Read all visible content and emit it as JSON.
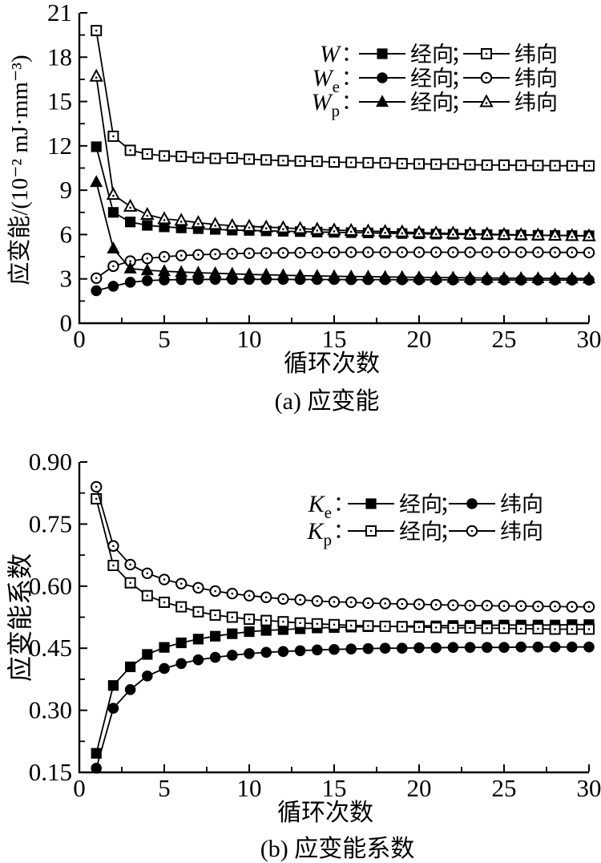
{
  "colors": {
    "foreground": "#000000",
    "background": "#ffffff"
  },
  "chart_data": [
    {
      "type": "line",
      "caption": "(a) 应变能",
      "xlabel": "循环次数",
      "ylabel": "应变能/(10⁻² mJ·mm⁻³)",
      "xlim": [
        0,
        30
      ],
      "ylim": [
        0,
        21
      ],
      "grid": false,
      "legend_position": "top-right-inside",
      "x_ticks": {
        "major": [
          0,
          5,
          10,
          15,
          20,
          25,
          30
        ],
        "labels": [
          "0",
          "5",
          "10",
          "15",
          "20",
          "25",
          "30"
        ],
        "minor_step": 2.5
      },
      "y_ticks": {
        "major": [
          0,
          3,
          6,
          9,
          12,
          15,
          18,
          21
        ],
        "labels": [
          "0",
          "3",
          "6",
          "9",
          "12",
          "15",
          "18",
          "21"
        ],
        "minor_step": 1.5
      },
      "x": [
        1,
        2,
        3,
        4,
        5,
        6,
        7,
        8,
        9,
        10,
        11,
        12,
        13,
        14,
        15,
        16,
        17,
        18,
        19,
        20,
        21,
        22,
        23,
        24,
        25,
        26,
        27,
        28,
        29,
        30
      ],
      "series": [
        {
          "name": "W 经向",
          "marker": "square",
          "fill": "filled",
          "values": [
            11.94,
            7.5,
            6.85,
            6.62,
            6.52,
            6.45,
            6.4,
            6.35,
            6.3,
            6.28,
            6.25,
            6.22,
            6.2,
            6.17,
            6.15,
            6.13,
            6.11,
            6.09,
            6.07,
            6.05,
            6.03,
            6.02,
            6.0,
            5.99,
            5.98,
            5.96,
            5.95,
            5.94,
            5.93,
            5.92
          ]
        },
        {
          "name": "W 纬向",
          "marker": "square",
          "fill": "open",
          "values": [
            19.8,
            12.65,
            11.7,
            11.45,
            11.32,
            11.28,
            11.2,
            11.15,
            11.18,
            11.1,
            11.05,
            11.0,
            10.97,
            10.95,
            10.9,
            10.88,
            10.86,
            10.85,
            10.8,
            10.78,
            10.76,
            10.78,
            10.72,
            10.7,
            10.7,
            10.68,
            10.67,
            10.66,
            10.65,
            10.65
          ]
        },
        {
          "name": "We 经向",
          "marker": "circle",
          "fill": "filled",
          "values": [
            2.2,
            2.5,
            2.77,
            2.88,
            2.93,
            2.95,
            2.96,
            2.97,
            2.97,
            2.97,
            2.97,
            2.97,
            2.96,
            2.96,
            2.96,
            2.95,
            2.95,
            2.95,
            2.94,
            2.94,
            2.94,
            2.93,
            2.93,
            2.93,
            2.93,
            2.92,
            2.92,
            2.92,
            2.92,
            2.92
          ]
        },
        {
          "name": "We 纬向",
          "marker": "circle",
          "fill": "open",
          "values": [
            3.05,
            3.86,
            4.2,
            4.38,
            4.5,
            4.58,
            4.63,
            4.67,
            4.7,
            4.73,
            4.75,
            4.76,
            4.77,
            4.78,
            4.79,
            4.8,
            4.8,
            4.8,
            4.8,
            4.8,
            4.8,
            4.8,
            4.8,
            4.8,
            4.8,
            4.8,
            4.8,
            4.79,
            4.79,
            4.78
          ]
        },
        {
          "name": "Wp 经向",
          "marker": "triangle",
          "fill": "filled",
          "values": [
            9.55,
            5.05,
            3.7,
            3.58,
            3.52,
            3.46,
            3.42,
            3.38,
            3.34,
            3.3,
            3.28,
            3.25,
            3.22,
            3.2,
            3.18,
            3.16,
            3.15,
            3.13,
            3.12,
            3.1,
            3.09,
            3.08,
            3.07,
            3.06,
            3.05,
            3.05,
            3.04,
            3.04,
            3.03,
            3.03
          ]
        },
        {
          "name": "Wp 纬向",
          "marker": "triangle",
          "fill": "open",
          "values": [
            16.7,
            8.7,
            7.9,
            7.35,
            7.06,
            6.95,
            6.8,
            6.68,
            6.6,
            6.55,
            6.5,
            6.45,
            6.4,
            6.35,
            6.3,
            6.27,
            6.23,
            6.2,
            6.17,
            6.13,
            6.1,
            6.08,
            6.05,
            6.03,
            6.0,
            5.98,
            5.96,
            5.94,
            5.92,
            5.9
          ]
        }
      ],
      "legend": {
        "colon": "：",
        "separator": "；",
        "rows": [
          {
            "label": "W",
            "sub": "",
            "entries": [
              {
                "marker": "square",
                "fill": "filled",
                "text": "经向"
              },
              {
                "marker": "square",
                "fill": "open",
                "text": "纬向"
              }
            ]
          },
          {
            "label": "W",
            "sub": "e",
            "entries": [
              {
                "marker": "circle",
                "fill": "filled",
                "text": "经向"
              },
              {
                "marker": "circle",
                "fill": "open",
                "text": "纬向"
              }
            ]
          },
          {
            "label": "W",
            "sub": "p",
            "entries": [
              {
                "marker": "triangle",
                "fill": "filled",
                "text": "经向"
              },
              {
                "marker": "triangle",
                "fill": "open",
                "text": "纬向"
              }
            ]
          }
        ]
      }
    },
    {
      "type": "line",
      "caption": "(b) 应变能系数",
      "xlabel": "循环次数",
      "ylabel": "应变能系数",
      "xlim": [
        0,
        30
      ],
      "ylim": [
        0.15,
        0.9
      ],
      "grid": false,
      "legend_position": "top-right-inside",
      "x_ticks": {
        "major": [
          0,
          5,
          10,
          15,
          20,
          25,
          30
        ],
        "labels": [
          "0",
          "5",
          "10",
          "15",
          "20",
          "25",
          "30"
        ],
        "minor_step": 2.5
      },
      "y_ticks": {
        "major": [
          0.15,
          0.3,
          0.45,
          0.6,
          0.75,
          0.9
        ],
        "labels": [
          "0.15",
          "0.30",
          "0.45",
          "0.60",
          "0.75",
          "0.90"
        ],
        "minor_step": 0.075
      },
      "x": [
        1,
        2,
        3,
        4,
        5,
        6,
        7,
        8,
        9,
        10,
        11,
        12,
        13,
        14,
        15,
        16,
        17,
        18,
        19,
        20,
        21,
        22,
        23,
        24,
        25,
        26,
        27,
        28,
        29,
        30
      ],
      "series": [
        {
          "name": "Ke 经向",
          "marker": "square",
          "fill": "filled",
          "values": [
            0.196,
            0.36,
            0.405,
            0.435,
            0.452,
            0.463,
            0.472,
            0.479,
            0.485,
            0.49,
            0.493,
            0.495,
            0.497,
            0.499,
            0.5,
            0.501,
            0.502,
            0.503,
            0.503,
            0.504,
            0.504,
            0.505,
            0.505,
            0.505,
            0.506,
            0.506,
            0.506,
            0.506,
            0.507,
            0.507
          ]
        },
        {
          "name": "Ke 纬向",
          "marker": "circle",
          "fill": "filled",
          "values": [
            0.16,
            0.305,
            0.35,
            0.383,
            0.401,
            0.413,
            0.422,
            0.428,
            0.433,
            0.437,
            0.44,
            0.442,
            0.444,
            0.446,
            0.447,
            0.448,
            0.449,
            0.45,
            0.45,
            0.451,
            0.451,
            0.452,
            0.452,
            0.452,
            0.452,
            0.453,
            0.453,
            0.453,
            0.453,
            0.453
          ]
        },
        {
          "name": "Kp 经向",
          "marker": "square",
          "fill": "open",
          "values": [
            0.811,
            0.65,
            0.608,
            0.577,
            0.561,
            0.55,
            0.538,
            0.53,
            0.525,
            0.52,
            0.517,
            0.514,
            0.511,
            0.509,
            0.507,
            0.505,
            0.504,
            0.503,
            0.502,
            0.501,
            0.5,
            0.499,
            0.499,
            0.498,
            0.498,
            0.497,
            0.497,
            0.496,
            0.496,
            0.496
          ]
        },
        {
          "name": "Kp 纬向",
          "marker": "circle",
          "fill": "open",
          "values": [
            0.84,
            0.697,
            0.652,
            0.631,
            0.616,
            0.606,
            0.596,
            0.588,
            0.582,
            0.577,
            0.573,
            0.569,
            0.567,
            0.564,
            0.562,
            0.561,
            0.559,
            0.558,
            0.557,
            0.556,
            0.555,
            0.554,
            0.553,
            0.553,
            0.552,
            0.552,
            0.551,
            0.551,
            0.55,
            0.55
          ]
        }
      ],
      "legend": {
        "colon": "：",
        "separator": "；",
        "rows": [
          {
            "label": "K",
            "sub": "e",
            "entries": [
              {
                "marker": "square",
                "fill": "filled",
                "text": "经向"
              },
              {
                "marker": "circle",
                "fill": "filled",
                "text": "纬向"
              }
            ]
          },
          {
            "label": "K",
            "sub": "p",
            "entries": [
              {
                "marker": "square",
                "fill": "open",
                "text": "经向"
              },
              {
                "marker": "circle",
                "fill": "open",
                "text": "纬向"
              }
            ]
          }
        ]
      }
    }
  ]
}
